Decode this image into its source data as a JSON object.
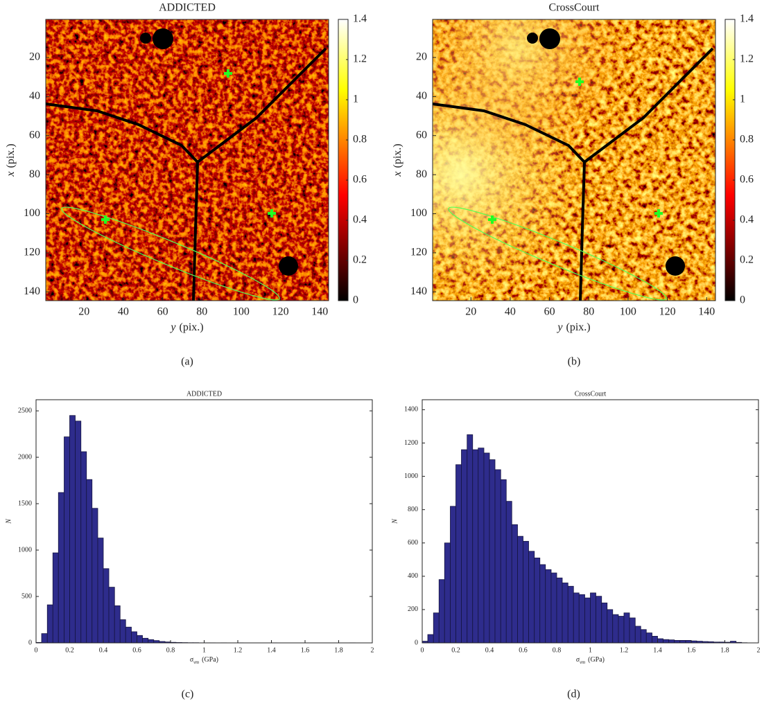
{
  "chart_data": [
    {
      "type": "heatmap",
      "title": "ADDICTED",
      "xlabel": [
        "y",
        "(pix.)"
      ],
      "ylabel": [
        "x",
        "(pix.)"
      ],
      "xlim": [
        0.5,
        144.5
      ],
      "ylim": [
        0.5,
        144.5
      ],
      "y_reversed": true,
      "xticks": [
        20,
        40,
        60,
        80,
        100,
        120,
        140
      ],
      "yticks": [
        20,
        40,
        60,
        80,
        100,
        120,
        140
      ],
      "clim": [
        0,
        1.4
      ],
      "cticks": [
        0,
        0.2,
        0.4,
        0.6,
        0.8,
        1,
        1.2,
        1.4
      ],
      "colormap": "hot",
      "caption": "(a)"
    },
    {
      "type": "heatmap",
      "title": "CrossCourt",
      "xlabel": [
        "y",
        "(pix.)"
      ],
      "ylabel": [
        "x",
        "(pix.)"
      ],
      "xlim": [
        0.5,
        144.5
      ],
      "ylim": [
        0.5,
        144.5
      ],
      "y_reversed": true,
      "xticks": [
        20,
        40,
        60,
        80,
        100,
        120,
        140
      ],
      "yticks": [
        20,
        40,
        60,
        80,
        100,
        120,
        140
      ],
      "clim": [
        0,
        1.4
      ],
      "cticks": [
        0,
        0.2,
        0.4,
        0.6,
        0.8,
        1,
        1.2,
        1.4
      ],
      "colormap": "hot",
      "caption": "(b)"
    },
    {
      "type": "histogram",
      "title": "ADDICTED",
      "xlabel": [
        "σ",
        "vm",
        "(GPa)"
      ],
      "ylabel": "N",
      "color": "#2e2c8c",
      "bins": [
        0,
        0.033,
        0.067,
        0.1,
        0.133,
        0.167,
        0.2,
        0.233,
        0.267,
        0.3,
        0.333,
        0.367,
        0.4,
        0.433,
        0.467,
        0.5,
        0.533,
        0.567,
        0.6,
        0.633,
        0.667,
        0.7,
        0.733,
        0.767,
        0.8,
        0.833,
        0.867,
        0.9,
        0.933,
        0.967,
        1,
        1.033,
        1.067,
        1.1,
        1.133,
        1.167,
        1.2,
        1.233,
        1.267,
        1.3,
        1.333,
        1.367,
        1.4,
        1.433,
        1.467,
        1.5,
        1.533,
        1.567,
        1.6,
        1.633,
        1.667,
        1.7,
        1.733,
        1.767,
        1.8,
        1.833,
        1.867,
        1.9,
        1.933
      ],
      "values": [
        5,
        100,
        410,
        970,
        1620,
        2220,
        2450,
        2390,
        2060,
        1760,
        1450,
        1130,
        800,
        600,
        400,
        250,
        170,
        120,
        80,
        50,
        35,
        25,
        15,
        10,
        6,
        4,
        3,
        2,
        2,
        1,
        1,
        1,
        0,
        1,
        0,
        0,
        1,
        0,
        0,
        0,
        0,
        0,
        1,
        0,
        0,
        0,
        0,
        0,
        0,
        0,
        0,
        0,
        0,
        0,
        0,
        0,
        1,
        0
      ],
      "xlim": [
        0,
        2
      ],
      "xticks": [
        0,
        0.2,
        0.4,
        0.6,
        0.8,
        1,
        1.2,
        1.4,
        1.6,
        1.8,
        2
      ],
      "ylim": [
        0,
        2620
      ],
      "yticks": [
        0,
        500,
        1000,
        1500,
        2000,
        2500
      ],
      "caption": "(c)"
    },
    {
      "type": "histogram",
      "title": "CrossCourt",
      "xlabel": [
        "σ",
        "vm",
        "(GPa)"
      ],
      "ylabel": "N",
      "color": "#2e2c8c",
      "bins": [
        0,
        0.033,
        0.067,
        0.1,
        0.133,
        0.167,
        0.2,
        0.233,
        0.267,
        0.3,
        0.333,
        0.367,
        0.4,
        0.433,
        0.467,
        0.5,
        0.533,
        0.567,
        0.6,
        0.633,
        0.667,
        0.7,
        0.733,
        0.767,
        0.8,
        0.833,
        0.867,
        0.9,
        0.933,
        0.967,
        1,
        1.033,
        1.067,
        1.1,
        1.133,
        1.167,
        1.2,
        1.233,
        1.267,
        1.3,
        1.333,
        1.367,
        1.4,
        1.433,
        1.467,
        1.5,
        1.533,
        1.567,
        1.6,
        1.633,
        1.667,
        1.7,
        1.733,
        1.767,
        1.8,
        1.833,
        1.867,
        1.9,
        1.933
      ],
      "values": [
        10,
        50,
        180,
        380,
        600,
        820,
        1070,
        1160,
        1250,
        1160,
        1170,
        1140,
        1100,
        1040,
        980,
        850,
        710,
        640,
        610,
        550,
        510,
        470,
        440,
        420,
        390,
        360,
        340,
        300,
        290,
        270,
        300,
        280,
        240,
        200,
        170,
        160,
        180,
        150,
        100,
        80,
        60,
        40,
        25,
        20,
        18,
        15,
        15,
        15,
        12,
        10,
        8,
        7,
        5,
        5,
        4,
        10,
        3,
        1
      ],
      "xlim": [
        0,
        2
      ],
      "xticks": [
        0,
        0.2,
        0.4,
        0.6,
        0.8,
        1,
        1.2,
        1.4,
        1.6,
        1.8,
        2
      ],
      "ylim": [
        0,
        1460
      ],
      "yticks": [
        0,
        200,
        400,
        600,
        800,
        1000,
        1200,
        1400
      ],
      "caption": "(d)"
    }
  ]
}
